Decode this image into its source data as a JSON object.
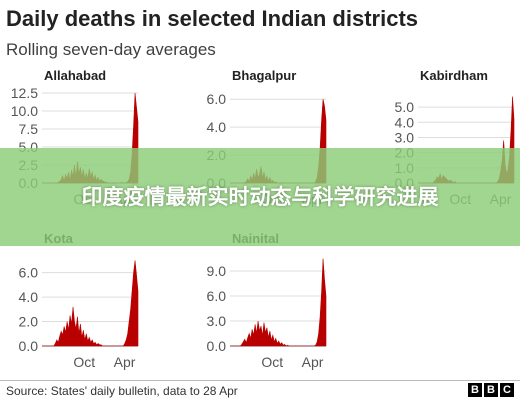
{
  "title": "Daily deaths in selected Indian districts",
  "subtitle": "Rolling seven-day averages",
  "banner_text": "印度疫情最新实时动态与科学研究进展",
  "source": "Source: States' daily bulletin, data to 28 Apr",
  "logo": [
    "B",
    "B",
    "C"
  ],
  "colors": {
    "series": "#b80000",
    "grid": "#dddddd",
    "banner": "#8ccd78"
  },
  "chart_data": [
    {
      "type": "area",
      "title": "Allahabad",
      "x_ticks": [
        "Oct",
        "Apr"
      ],
      "y_ticks": [
        "0.0",
        "2.5",
        "5.0",
        "7.5",
        "10.0",
        "12.5"
      ],
      "ylim": [
        0,
        12.5
      ],
      "values": [
        0,
        0,
        0,
        0,
        0,
        0,
        0,
        0,
        0,
        0,
        0,
        0.1,
        0.2,
        0.5,
        1.0,
        0.3,
        1.2,
        0.6,
        1.5,
        0.4,
        1.8,
        0.9,
        2.5,
        0.7,
        3.0,
        1.2,
        2.2,
        0.8,
        1.9,
        0.5,
        1.4,
        0.6,
        2.0,
        0.9,
        1.5,
        0.4,
        1.1,
        0.3,
        0.8,
        0.2,
        0.5,
        0.3,
        0.2,
        0.1,
        0.1,
        0,
        0,
        0,
        0,
        0,
        0,
        0,
        0,
        0,
        0.1,
        0,
        0,
        0,
        0.2,
        0.5,
        1.5,
        4.0,
        8.0,
        12.5,
        10.5,
        8.5
      ]
    },
    {
      "type": "area",
      "title": "Bhagalpur",
      "x_ticks": [
        "Oct",
        "Apr"
      ],
      "y_ticks": [
        "0.0",
        "2.0",
        "4.0",
        "6.0"
      ],
      "ylim": [
        0,
        6.3
      ],
      "values": [
        0,
        0,
        0,
        0,
        0,
        0,
        0,
        0,
        0,
        0,
        0,
        0.1,
        0.3,
        0.1,
        0.5,
        0.2,
        0.7,
        0.3,
        1.0,
        0.4,
        0.6,
        1.2,
        0.3,
        0.8,
        0.2,
        0.5,
        0.1,
        0.4,
        0.1,
        0.2,
        0,
        0.1,
        0,
        0,
        0,
        0,
        0,
        0,
        0,
        0,
        0,
        0,
        0,
        0,
        0,
        0,
        0,
        0,
        0,
        0,
        0,
        0,
        0,
        0,
        0,
        0,
        0,
        0,
        0.1,
        0.4,
        1.2,
        2.5,
        4.5,
        6.0,
        5.5,
        4.5
      ]
    },
    {
      "type": "area",
      "title": "Kabirdham",
      "x_ticks": [
        "Oct",
        "Apr"
      ],
      "y_ticks": [
        "0.0",
        "1.0",
        "2.0",
        "3.0",
        "4.0",
        "5.0"
      ],
      "ylim": [
        0,
        5.8
      ],
      "values": [
        0,
        0,
        0,
        0,
        0,
        0,
        0,
        0,
        0,
        0,
        0,
        0.1,
        0.2,
        0.4,
        0.3,
        0.6,
        0.2,
        0.5,
        0.4,
        0.3,
        0.2,
        0.1,
        0.2,
        0.1,
        0,
        0.1,
        0,
        0,
        0,
        0,
        0,
        0,
        0,
        0,
        0,
        0,
        0,
        0,
        0,
        0,
        0,
        0,
        0,
        0,
        0,
        0,
        0,
        0,
        0,
        0,
        0,
        0,
        0,
        0,
        0.1,
        0.3,
        0.8,
        1.5,
        2.8,
        1.2,
        0.6,
        0.9,
        1.8,
        3.5,
        5.7,
        4.2
      ]
    },
    {
      "type": "area",
      "title": "Kota",
      "x_ticks": [
        "Oct",
        "Apr"
      ],
      "y_ticks": [
        "0.0",
        "2.0",
        "4.0",
        "6.0"
      ],
      "ylim": [
        0,
        7.2
      ],
      "values": [
        0,
        0,
        0,
        0,
        0,
        0,
        0,
        0,
        0,
        0.2,
        0.5,
        0.3,
        0.8,
        1.2,
        0.9,
        1.6,
        1.1,
        2.0,
        1.3,
        2.5,
        1.8,
        3.2,
        2.0,
        1.4,
        2.4,
        1.0,
        1.8,
        0.7,
        1.3,
        0.5,
        1.0,
        0.4,
        0.7,
        0.3,
        0.5,
        0.2,
        0.3,
        0.1,
        0.2,
        0.1,
        0.1,
        0,
        0,
        0,
        0,
        0,
        0,
        0,
        0,
        0,
        0,
        0,
        0,
        0,
        0,
        0,
        0.2,
        0.5,
        1.0,
        2.0,
        3.0,
        4.5,
        6.0,
        7.0,
        5.8,
        4.5
      ]
    },
    {
      "type": "area",
      "title": "Nainital",
      "x_ticks": [
        "Oct",
        "Apr"
      ],
      "y_ticks": [
        "0.0",
        "3.0",
        "6.0",
        "9.0"
      ],
      "ylim": [
        0,
        10.8
      ],
      "values": [
        0,
        0,
        0,
        0,
        0,
        0,
        0,
        0,
        0.2,
        0.5,
        0.8,
        0.4,
        1.0,
        1.5,
        0.9,
        2.0,
        1.3,
        2.6,
        1.5,
        3.0,
        1.8,
        2.4,
        1.2,
        2.8,
        1.6,
        2.2,
        1.0,
        1.8,
        0.7,
        1.3,
        0.5,
        0.9,
        0.3,
        0.6,
        0.2,
        0.4,
        0.1,
        0.2,
        0,
        0.1,
        0,
        0,
        0,
        0,
        0,
        0,
        0,
        0,
        0,
        0,
        0,
        0,
        0,
        0,
        0,
        0,
        0,
        0,
        0.1,
        0.5,
        1.5,
        3.5,
        6.5,
        10.5,
        8.0,
        6.0
      ]
    }
  ]
}
